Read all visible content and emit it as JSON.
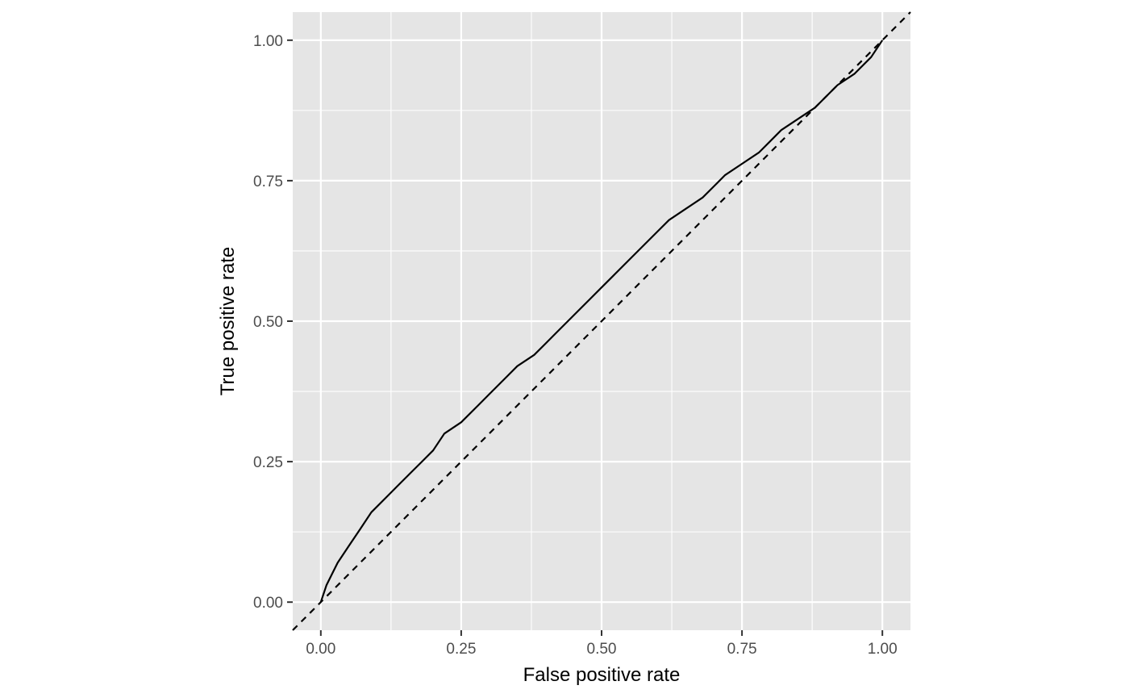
{
  "chart_data": {
    "type": "line",
    "title": "",
    "xlabel": "False positive rate",
    "ylabel": "True positive rate",
    "xlim": [
      -0.05,
      1.05
    ],
    "ylim": [
      -0.05,
      1.05
    ],
    "grid": true,
    "legend": "none",
    "x_ticks": [
      0,
      0.25,
      0.5,
      0.75,
      1
    ],
    "x_tick_labels": [
      "0.00",
      "0.25",
      "0.50",
      "0.75",
      "1.00"
    ],
    "y_ticks": [
      0,
      0.25,
      0.5,
      0.75,
      1
    ],
    "y_tick_labels": [
      "0.00",
      "0.25",
      "0.50",
      "0.75",
      "1.00"
    ],
    "colors": {
      "panel": "#e5e5e5",
      "grid": "#ffffff",
      "line": "#000000",
      "tick_text": "#4d4d4d"
    },
    "series": [
      {
        "style": "solid",
        "x": [
          0,
          0.01,
          0.02,
          0.03,
          0.05,
          0.07,
          0.09,
          0.1,
          0.12,
          0.14,
          0.16,
          0.18,
          0.2,
          0.22,
          0.25,
          0.28,
          0.3,
          0.33,
          0.35,
          0.38,
          0.4,
          0.42,
          0.45,
          0.48,
          0.5,
          0.52,
          0.55,
          0.58,
          0.6,
          0.62,
          0.65,
          0.68,
          0.7,
          0.72,
          0.75,
          0.78,
          0.8,
          0.82,
          0.85,
          0.88,
          0.9,
          0.92,
          0.95,
          0.98,
          1.0
        ],
        "y": [
          0,
          0.03,
          0.05,
          0.07,
          0.1,
          0.13,
          0.16,
          0.17,
          0.19,
          0.21,
          0.23,
          0.25,
          0.27,
          0.3,
          0.32,
          0.35,
          0.37,
          0.4,
          0.42,
          0.44,
          0.46,
          0.48,
          0.51,
          0.54,
          0.56,
          0.58,
          0.61,
          0.64,
          0.66,
          0.68,
          0.7,
          0.72,
          0.74,
          0.76,
          0.78,
          0.8,
          0.82,
          0.84,
          0.86,
          0.88,
          0.9,
          0.92,
          0.94,
          0.97,
          1.0
        ]
      },
      {
        "style": "dashed",
        "x": [
          -0.05,
          1.05
        ],
        "y": [
          -0.05,
          1.05
        ]
      }
    ]
  }
}
